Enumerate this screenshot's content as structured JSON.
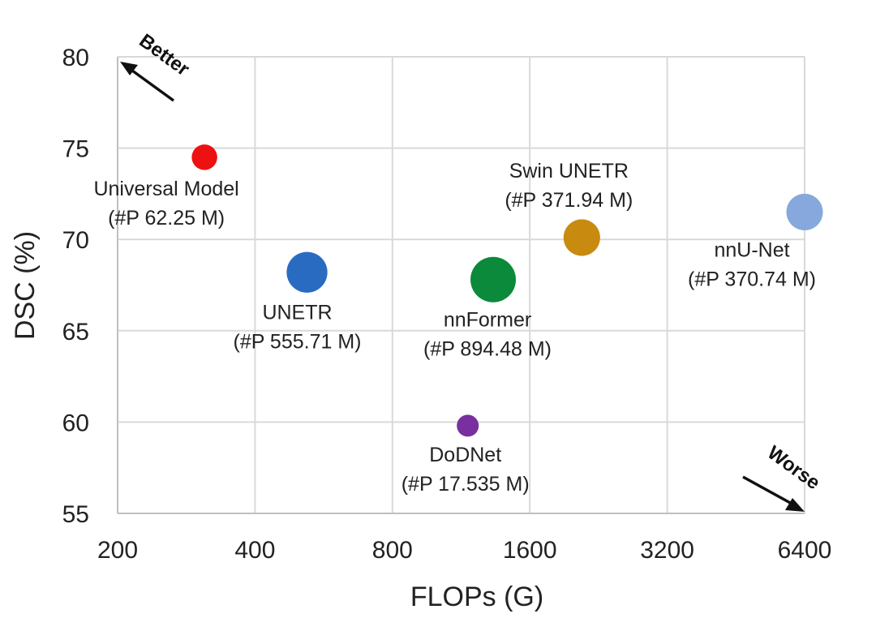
{
  "chart_data": {
    "type": "scatter",
    "xlabel": "FLOPs (G)",
    "ylabel": "DSC (%)",
    "x_scale": "log2",
    "xlim": [
      200,
      6400
    ],
    "ylim": [
      55,
      80
    ],
    "x_ticks": [
      200,
      400,
      800,
      1600,
      3200,
      6400
    ],
    "y_ticks": [
      55,
      60,
      65,
      70,
      75,
      80
    ],
    "grid": true,
    "annotations": {
      "better": "Better",
      "worse": "Worse"
    },
    "points": [
      {
        "label": "Universal Model",
        "params": "(#P 62.25 M)",
        "params_m": 62.25,
        "x": 310,
        "y": 74.5,
        "color": "#ee1111"
      },
      {
        "label": "UNETR",
        "params": "(#P 555.71 M)",
        "params_m": 555.71,
        "x": 520,
        "y": 68.2,
        "color": "#2a6bc2"
      },
      {
        "label": "nnFormer",
        "params": "(#P 894.48 M)",
        "params_m": 894.48,
        "x": 1330,
        "y": 67.8,
        "color": "#0a8a3a"
      },
      {
        "label": "Swin UNETR",
        "params": "(#P 371.94 M)",
        "params_m": 371.94,
        "x": 2080,
        "y": 70.1,
        "color": "#c98a10"
      },
      {
        "label": "nnU-Net",
        "params": "(#P 370.74 M)",
        "params_m": 370.74,
        "x": 6400,
        "y": 71.5,
        "color": "#86a8dc"
      },
      {
        "label": "DoDNet",
        "params": "(#P 17.535 M)",
        "params_m": 17.535,
        "x": 1170,
        "y": 59.8,
        "color": "#7a2fa0"
      }
    ]
  }
}
